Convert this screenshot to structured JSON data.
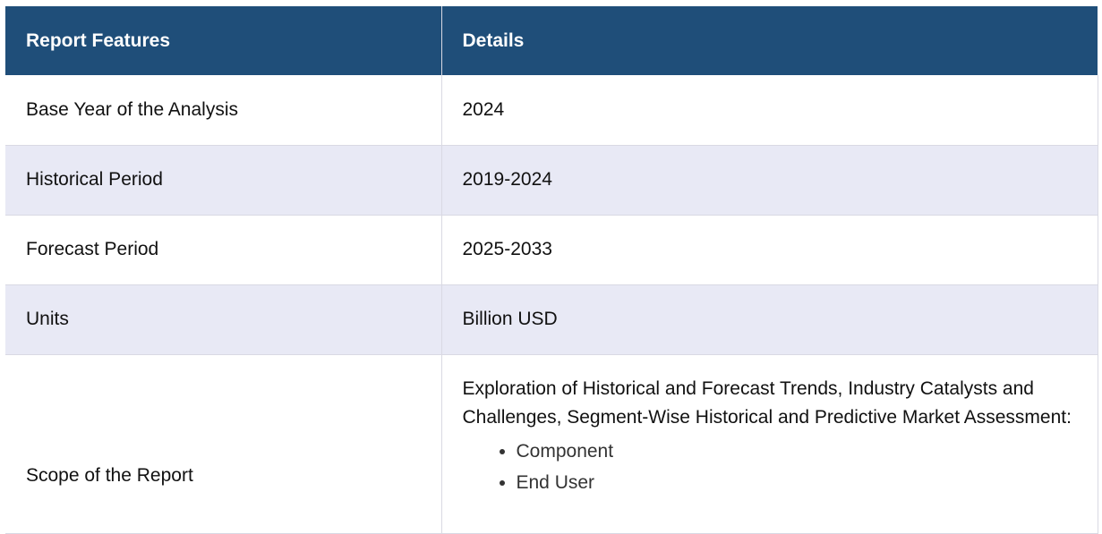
{
  "table": {
    "headers": [
      "Report Features",
      "Details"
    ],
    "rows": [
      {
        "feature": "Base Year of the Analysis",
        "details": "2024"
      },
      {
        "feature": "Historical Period",
        "details": "2019-2024"
      },
      {
        "feature": "Forecast Period",
        "details": "2025-2033"
      },
      {
        "feature": "Units",
        "details": "Billion USD"
      }
    ],
    "scope": {
      "feature": "Scope of the Report",
      "description": "Exploration of Historical and Forecast Trends, Industry Catalysts and Challenges, Segment-Wise Historical and Predictive Market Assessment:",
      "items": [
        "Component",
        "End User"
      ]
    }
  },
  "colors": {
    "header_bg": "#1f4e79",
    "header_text": "#ffffff",
    "alt_row_bg": "#e8e9f5",
    "border": "#d9d9e3"
  }
}
